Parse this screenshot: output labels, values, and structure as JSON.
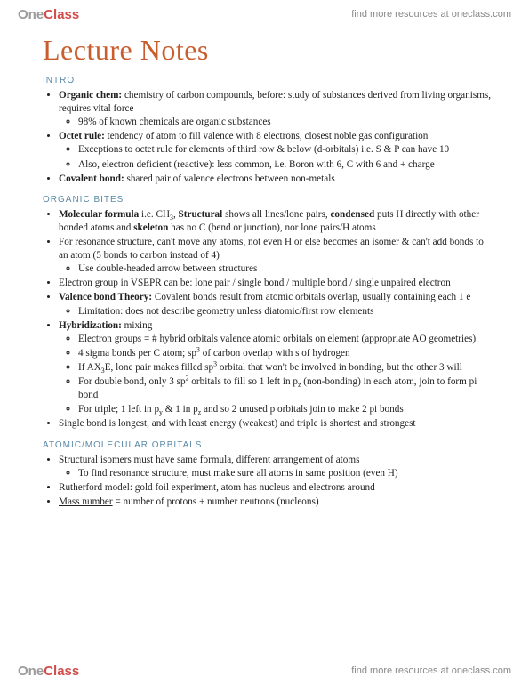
{
  "brand": {
    "part1": "One",
    "part2": "Class"
  },
  "header_link": "find more resources at oneclass.com",
  "footer_link": "find more resources at oneclass.com",
  "page_title": "Lecture Notes",
  "colors": {
    "title": "#c95d2e",
    "heading": "#5a8aa8",
    "body": "#222222",
    "logo_one": "#9b9b9b",
    "logo_class": "#d14d4d",
    "link": "#888888",
    "background": "#ffffff"
  },
  "font_sizes": {
    "title": 32,
    "heading": 10,
    "body": 11.2,
    "header": 11,
    "logo": 15
  },
  "sections": [
    {
      "heading": "INTRO",
      "items": [
        {
          "bold": "Organic chem:",
          "text": " chemistry of carbon compounds, before: study of substances derived from living organisms, requires vital force",
          "sub": [
            {
              "text": "98% of known chemicals are organic substances"
            }
          ]
        },
        {
          "bold": "Octet rule:",
          "text": " tendency of atom to fill valence with 8 electrons, closest noble gas configuration",
          "sub": [
            {
              "text": "Exceptions to octet rule for elements of third row & below (d-orbitals) i.e. S & P can have 10"
            },
            {
              "text": "Also, electron deficient (reactive): less common, i.e. Boron with 6, C with 6 and + charge"
            }
          ]
        },
        {
          "bold": "Covalent bond:",
          "text": " shared pair of valence electrons between non-metals"
        }
      ]
    },
    {
      "heading": "ORGANIC BITES",
      "items": [
        {
          "html": "<span class='bold'>Molecular formula</span> i.e. CH<sub>3</sub>, <span class='bold'>Structural</span> shows all lines/lone pairs, <span class='bold'>condensed</span> puts H directly with other bonded atoms and <span class='bold'>skeleton</span> has no C (bend or junction), nor lone pairs/H atoms"
        },
        {
          "html": "For <span class='uline'>resonance structure</span>, can't move any atoms, not even H or else becomes an isomer & can't add bonds to an atom (5 bonds to carbon instead of 4)",
          "sub": [
            {
              "text": "Use double-headed arrow between structures"
            }
          ]
        },
        {
          "text": "Electron group in VSEPR can be: lone pair / single bond / multiple bond / single unpaired electron"
        },
        {
          "html": "<span class='bold'>Valence bond Theory:</span> Covalent bonds result from atomic orbitals overlap, usually containing each 1 e<sup>-</sup>",
          "sub": [
            {
              "text": "Limitation: does not describe geometry unless diatomic/first row elements"
            }
          ]
        },
        {
          "bold": "Hybridization:",
          "text": " mixing",
          "sub": [
            {
              "text": "Electron groups = # hybrid orbitals valence atomic orbitals on element (appropriate AO geometries)"
            },
            {
              "html": "4 sigma bonds per C atom; sp<sup>3</sup> of carbon overlap with s of hydrogen"
            },
            {
              "html": "If AX<sub>3</sub>E, lone pair makes filled sp<sup>3</sup> orbital that won't be involved in bonding, but the other 3 will"
            },
            {
              "html": "For double bond, only 3 sp<sup>2</sup> orbitals to fill so 1 left in p<sub>z</sub> (non-bonding) in each atom, join to form pi bond"
            },
            {
              "html": "For triple; 1 left in p<sub>y</sub> & 1 in p<sub>z</sub> and so 2 unused p orbitals join to make 2 pi bonds"
            }
          ]
        },
        {
          "text": "Single bond is longest, and with least energy (weakest) and triple is shortest and strongest"
        }
      ]
    },
    {
      "heading": "ATOMIC/MOLECULAR ORBITALS",
      "items": [
        {
          "text": "Structural isomers must have same formula, different arrangement of atoms",
          "sub": [
            {
              "text": "To find resonance structure, must make sure all atoms in same position (even H)"
            }
          ]
        },
        {
          "text": "Rutherford model: gold foil experiment, atom has nucleus and electrons around"
        },
        {
          "html": "<span class='uline'>Mass number</span> = number of protons + number neutrons (nucleons)"
        }
      ]
    }
  ]
}
